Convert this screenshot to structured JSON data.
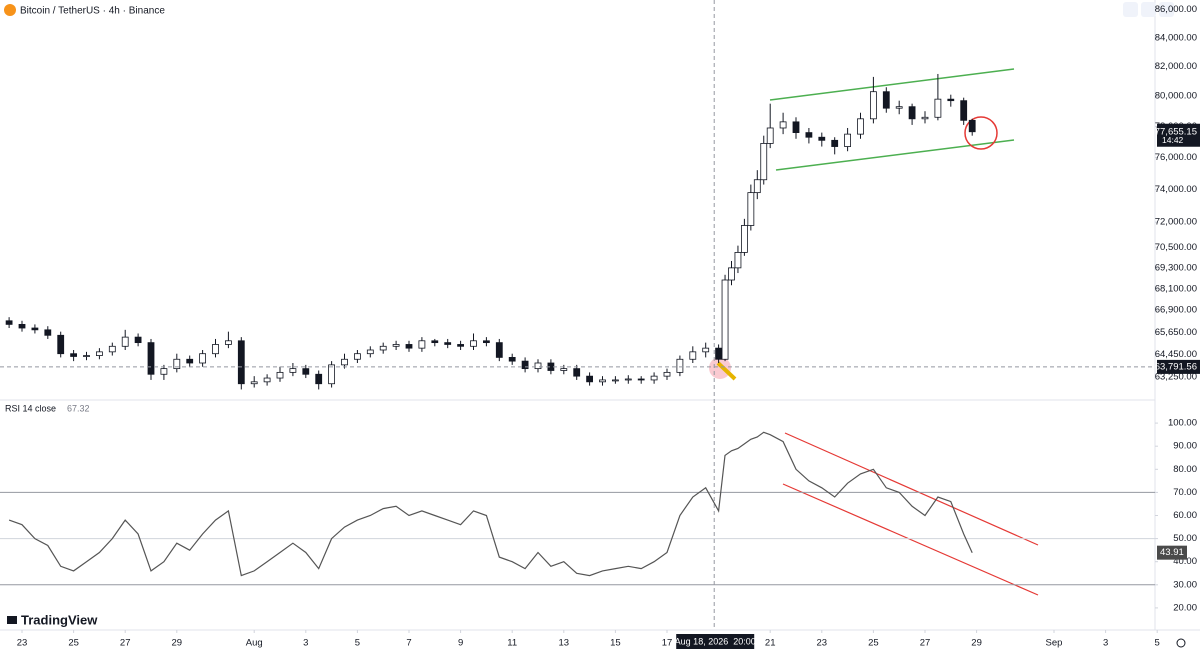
{
  "chart_data": [
    {
      "type": "candlestick",
      "title": "Bitcoin / TetherUS · 4h · Binance",
      "log_scale": true,
      "x": [
        -0.5,
        0,
        0.5,
        1,
        1.5,
        2,
        2.5,
        3,
        3.5,
        4,
        4.5,
        5,
        5.5,
        6,
        6.5,
        7,
        7.5,
        8,
        8.5,
        9,
        9.5,
        10,
        10.5,
        11,
        11.5,
        12,
        12.5,
        13,
        13.5,
        14,
        14.5,
        15,
        15.5,
        16,
        16.5,
        17,
        17.5,
        18,
        18.5,
        19,
        19.5,
        20,
        20.5,
        21,
        21.5,
        22,
        22.5,
        23,
        23.5,
        24,
        24.5,
        25,
        25.5,
        26,
        26.5,
        27,
        27.25,
        27.5,
        27.75,
        28,
        28.25,
        28.5,
        28.75,
        29,
        29.5,
        30,
        30.5,
        31,
        31.5,
        32,
        32.5,
        33,
        33.5,
        34,
        34.5,
        35,
        35.5,
        36,
        36.5,
        36.83
      ],
      "open": [
        66300,
        66100,
        65900,
        65800,
        65500,
        64500,
        64350,
        64400,
        64600,
        64900,
        65400,
        65100,
        63400,
        63700,
        64200,
        64000,
        64500,
        65000,
        65200,
        62900,
        63000,
        63200,
        63500,
        63700,
        63400,
        62900,
        63900,
        64200,
        64500,
        64700,
        64900,
        65000,
        64800,
        65200,
        65100,
        65000,
        64900,
        65200,
        65100,
        64300,
        64100,
        63700,
        64000,
        63600,
        63700,
        63300,
        63000,
        63100,
        63100,
        63150,
        63100,
        63300,
        63500,
        64200,
        64600,
        64800,
        64200,
        68600,
        69300,
        70200,
        71800,
        73800,
        74600,
        76900,
        77900,
        78300,
        77600,
        77300,
        77100,
        76700,
        77500,
        78500,
        80300,
        79200,
        79300,
        78500,
        78600,
        79800,
        79700,
        78400
      ],
      "high": [
        66500,
        66300,
        66100,
        66000,
        65700,
        64700,
        64600,
        64800,
        65100,
        65800,
        65600,
        65300,
        63900,
        64500,
        64400,
        64700,
        65300,
        65700,
        65400,
        63300,
        63400,
        63800,
        64000,
        63900,
        63600,
        64100,
        64500,
        64700,
        64900,
        65100,
        65200,
        65200,
        65400,
        65300,
        65300,
        65200,
        65600,
        65400,
        65300,
        64500,
        64300,
        64200,
        64200,
        63900,
        63900,
        63500,
        63300,
        63300,
        63350,
        63300,
        63500,
        63700,
        64400,
        64900,
        65100,
        65000,
        68900,
        69700,
        70600,
        72200,
        74300,
        75200,
        77400,
        79500,
        78900,
        78600,
        77900,
        77600,
        77300,
        77900,
        78900,
        81300,
        80600,
        79700,
        79500,
        79000,
        81500,
        80100,
        79900,
        78500
      ],
      "low": [
        65900,
        65700,
        65600,
        65300,
        64300,
        64100,
        64150,
        64200,
        64400,
        64700,
        64900,
        63100,
        63100,
        63500,
        63800,
        63800,
        64300,
        64800,
        62600,
        62700,
        62800,
        63000,
        63300,
        63200,
        62600,
        62700,
        63700,
        64000,
        64300,
        64500,
        64700,
        64600,
        64600,
        64900,
        64800,
        64700,
        64700,
        64900,
        64100,
        63900,
        63500,
        63500,
        63400,
        63400,
        63100,
        62800,
        62800,
        62900,
        62900,
        62900,
        62900,
        63100,
        63300,
        64000,
        64300,
        64000,
        64100,
        68300,
        69000,
        70000,
        71500,
        73400,
        74300,
        76600,
        77500,
        77200,
        76900,
        76700,
        76200,
        76400,
        77200,
        78200,
        78900,
        78800,
        78100,
        78200,
        78400,
        79300,
        78100,
        77400
      ],
      "close": [
        66100,
        65900,
        65800,
        65500,
        64500,
        64350,
        64400,
        64600,
        64900,
        65400,
        65100,
        63400,
        63700,
        64200,
        64000,
        64500,
        65000,
        65200,
        62900,
        63000,
        63200,
        63500,
        63700,
        63400,
        62900,
        63900,
        64200,
        64500,
        64700,
        64900,
        65000,
        64800,
        65200,
        65100,
        65000,
        64900,
        65200,
        65100,
        64300,
        64100,
        63700,
        64000,
        63600,
        63700,
        63300,
        63000,
        63100,
        63100,
        63150,
        63100,
        63300,
        63500,
        64200,
        64600,
        64800,
        64200,
        68600,
        69300,
        70200,
        71800,
        73800,
        74600,
        76900,
        77900,
        78300,
        77600,
        77300,
        77100,
        76700,
        77500,
        78500,
        80300,
        79200,
        79300,
        78500,
        78600,
        79800,
        79700,
        78400,
        77655.15
      ],
      "xlim": [
        -0.853,
        43.915
      ],
      "xticks": [
        {
          "value": 0,
          "label": "23"
        },
        {
          "value": 2,
          "label": "25"
        },
        {
          "value": 4,
          "label": "27"
        },
        {
          "value": 6,
          "label": "29"
        },
        {
          "value": 9,
          "label": "Aug"
        },
        {
          "value": 11,
          "label": "3"
        },
        {
          "value": 13,
          "label": "5"
        },
        {
          "value": 15,
          "label": "7"
        },
        {
          "value": 17,
          "label": "9"
        },
        {
          "value": 19,
          "label": "11"
        },
        {
          "value": 21,
          "label": "13"
        },
        {
          "value": 23,
          "label": "15"
        },
        {
          "value": 25,
          "label": "17"
        },
        {
          "value": 29,
          "label": "21"
        },
        {
          "value": 31,
          "label": "23"
        },
        {
          "value": 33,
          "label": "25"
        },
        {
          "value": 35,
          "label": "27"
        },
        {
          "value": 37,
          "label": "29"
        },
        {
          "value": 40,
          "label": "Sep"
        },
        {
          "value": 42,
          "label": "3"
        },
        {
          "value": 44,
          "label": "5"
        }
      ],
      "ylim": [
        62050,
        86700
      ],
      "yticks": [
        {
          "value": 86000,
          "label": "86,000.00"
        },
        {
          "value": 84000,
          "label": "84,000.00"
        },
        {
          "value": 82000,
          "label": "82,000.00"
        },
        {
          "value": 80000,
          "label": "80,000.00"
        },
        {
          "value": 78000,
          "label": "78,000.00"
        },
        {
          "value": 76000,
          "label": "76,000.00"
        },
        {
          "value": 74000,
          "label": "74,000.00"
        },
        {
          "value": 72000,
          "label": "72,000.00"
        },
        {
          "value": 70500,
          "label": "70,500.00"
        },
        {
          "value": 69300,
          "label": "69,300.00"
        },
        {
          "value": 68100,
          "label": "68,100.00"
        },
        {
          "value": 66900,
          "label": "66,900.00"
        },
        {
          "value": 65650,
          "label": "65,650.00"
        },
        {
          "value": 64450,
          "label": "64,450.00"
        },
        {
          "value": 63250,
          "label": "63,250.00"
        }
      ],
      "last_price": {
        "value": 77655.15,
        "label": "77,655.15"
      },
      "countdown": "14:42",
      "crosshair_price": {
        "value": 63791.56,
        "label": "63,791.56"
      },
      "crosshair_x": {
        "value": 26.83,
        "label": "Aug 18, 2026  20:00"
      },
      "up_color": "#ffffff",
      "down_color": "#131722",
      "brand": "TradingView"
    },
    {
      "type": "line",
      "title": "RSI 14 close",
      "legend_value": 67.32,
      "color": "#555555",
      "x": [
        -0.5,
        0,
        0.5,
        1,
        1.5,
        2,
        2.5,
        3,
        3.5,
        4,
        4.5,
        5,
        5.5,
        6,
        6.5,
        7,
        7.5,
        8,
        8.5,
        9,
        9.5,
        10,
        10.5,
        11,
        11.5,
        12,
        12.5,
        13,
        13.5,
        14,
        14.5,
        15,
        15.5,
        16,
        16.5,
        17,
        17.5,
        18,
        18.5,
        19,
        19.5,
        20,
        20.5,
        21,
        21.5,
        22,
        22.5,
        23,
        23.5,
        24,
        24.5,
        25,
        25.5,
        26,
        26.5,
        27,
        27.25,
        27.5,
        27.75,
        28,
        28.25,
        28.5,
        28.75,
        29,
        29.5,
        30,
        30.5,
        31,
        31.5,
        32,
        32.5,
        33,
        33.5,
        34,
        34.5,
        35,
        35.5,
        36,
        36.5,
        36.83
      ],
      "values": [
        58,
        56,
        50,
        47,
        38,
        36,
        40,
        44,
        50,
        58,
        52,
        36,
        40,
        48,
        45,
        52,
        58,
        62,
        34,
        36,
        40,
        44,
        48,
        44,
        37,
        50,
        55,
        58,
        60,
        63,
        64,
        60,
        62,
        60,
        58,
        56,
        62,
        60,
        42,
        40,
        37,
        44,
        38,
        40,
        35,
        34,
        36,
        37,
        38,
        37,
        40,
        44,
        60,
        68,
        72,
        62,
        86,
        88,
        89,
        91,
        93,
        94,
        96,
        95,
        92,
        80,
        75,
        72,
        68,
        74,
        78,
        80,
        72,
        70,
        64,
        60,
        68,
        66,
        52,
        43.91
      ],
      "last_value": 43.91,
      "xlim": [
        -0.853,
        43.915
      ],
      "ylim": [
        12.6,
        110
      ],
      "yticks": [
        {
          "value": 100,
          "label": "100.00"
        },
        {
          "value": 90,
          "label": "90.00"
        },
        {
          "value": 80,
          "label": "80.00"
        },
        {
          "value": 70,
          "label": "70.00"
        },
        {
          "value": 60,
          "label": "60.00"
        },
        {
          "value": 50,
          "label": "50.00"
        },
        {
          "value": 40,
          "label": "40.00"
        },
        {
          "value": 30,
          "label": "30.00"
        },
        {
          "value": 20,
          "label": "20.00"
        }
      ],
      "levels": [
        70,
        50,
        30
      ]
    }
  ]
}
